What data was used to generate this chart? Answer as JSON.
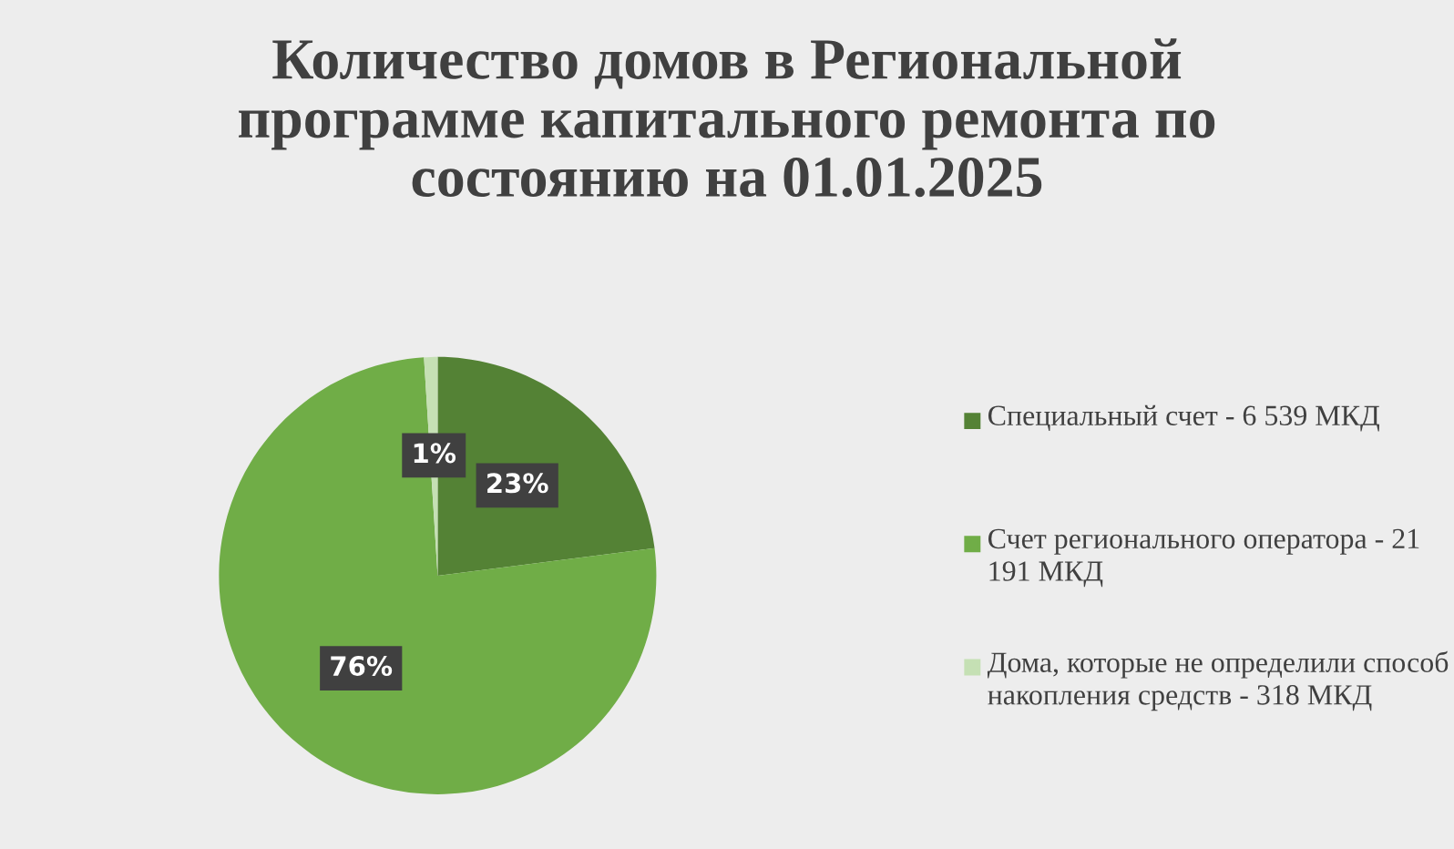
{
  "chart_data": {
    "type": "pie",
    "title": "Количество домов в Региональной программе капитального ремонта по состоянию на 01.01.2025",
    "categories": [
      "Специальный счет - 6 539 МКД",
      "Счет регионального оператора - 21 191 МКД",
      "Дома, которые не определили способ накопления средств - 318 МКД"
    ],
    "values": [
      23,
      76,
      1
    ],
    "colors": [
      "#548235",
      "#70ad47",
      "#c5e0b4"
    ],
    "value_labels": [
      "23%",
      "76%",
      "1%"
    ],
    "legend": "right"
  }
}
